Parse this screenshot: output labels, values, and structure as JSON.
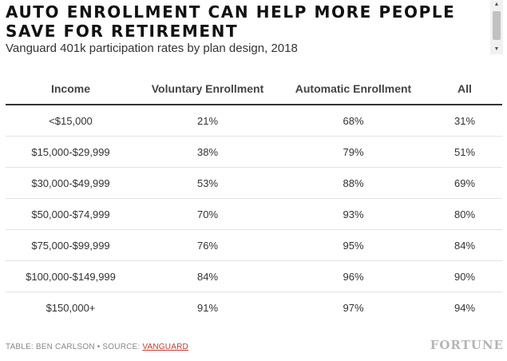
{
  "header": {
    "title": "AUTO ENROLLMENT CAN HELP MORE PEOPLE SAVE FOR RETIREMENT",
    "subtitle": "Vanguard 401k participation rates by plan design, 2018"
  },
  "chart_data": {
    "type": "table",
    "title": "AUTO ENROLLMENT CAN HELP MORE PEOPLE SAVE FOR RETIREMENT",
    "subtitle": "Vanguard 401k participation rates by plan design, 2018",
    "columns": [
      "Income",
      "Voluntary Enrollment",
      "Automatic Enrollment",
      "All"
    ],
    "rows": [
      [
        "<$15,000",
        "21%",
        "68%",
        "31%"
      ],
      [
        "$15,000-$29,999",
        "38%",
        "79%",
        "51%"
      ],
      [
        "$30,000-$49,999",
        "53%",
        "88%",
        "69%"
      ],
      [
        "$50,000-$74,999",
        "70%",
        "93%",
        "80%"
      ],
      [
        "$75,000-$99,999",
        "76%",
        "95%",
        "84%"
      ],
      [
        "$100,000-$149,999",
        "84%",
        "96%",
        "90%"
      ],
      [
        "$150,000+",
        "91%",
        "97%",
        "94%"
      ]
    ]
  },
  "footer": {
    "credit": "TABLE: BEN CARLSON • SOURCE: ",
    "source_link": "VANGUARD",
    "brand": "FORTUNE"
  },
  "scrollbar": {
    "up_icon": "▲",
    "down_icon": "▼"
  },
  "colors": {
    "link": "#c0392b",
    "brand": "#b5b5b5"
  }
}
